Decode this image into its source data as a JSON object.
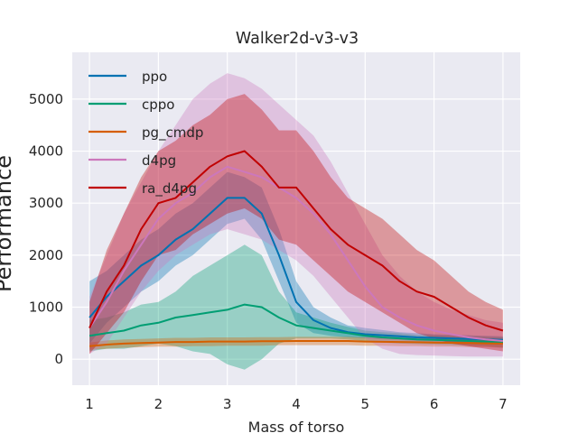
{
  "chart_data": {
    "type": "line",
    "title": "Walker2d-v3-v3",
    "xlabel": "Mass of torso",
    "ylabel": "Performance",
    "xlim": [
      0.75,
      7.25
    ],
    "ylim": [
      -500,
      5900
    ],
    "xticks": [
      1,
      2,
      3,
      4,
      5,
      6,
      7
    ],
    "yticks": [
      0,
      1000,
      2000,
      3000,
      4000,
      5000
    ],
    "grid": true,
    "legend_placement": "top-left",
    "x": [
      1.0,
      1.25,
      1.5,
      1.75,
      2.0,
      2.25,
      2.5,
      2.75,
      3.0,
      3.25,
      3.5,
      3.75,
      4.0,
      4.25,
      4.5,
      4.75,
      5.0,
      5.25,
      5.5,
      5.75,
      6.0,
      6.25,
      6.5,
      6.75,
      7.0
    ],
    "series": [
      {
        "name": "ppo",
        "color": "#0072b2",
        "values": [
          800,
          1200,
          1500,
          1800,
          2000,
          2300,
          2500,
          2800,
          3100,
          3100,
          2800,
          2000,
          1100,
          750,
          600,
          520,
          480,
          460,
          440,
          420,
          410,
          400,
          390,
          380,
          370
        ],
        "lower": [
          300,
          700,
          1000,
          1300,
          1500,
          1800,
          2000,
          2300,
          2600,
          2700,
          2300,
          1500,
          700,
          500,
          450,
          420,
          400,
          380,
          370,
          350,
          340,
          330,
          320,
          310,
          300
        ],
        "upper": [
          1500,
          1700,
          2000,
          2300,
          2500,
          2800,
          3000,
          3300,
          3600,
          3500,
          3300,
          2500,
          1500,
          1000,
          800,
          650,
          600,
          560,
          520,
          500,
          480,
          470,
          460,
          450,
          440
        ]
      },
      {
        "name": "cppo",
        "color": "#009e73",
        "values": [
          450,
          500,
          550,
          650,
          700,
          800,
          850,
          900,
          950,
          1050,
          1000,
          800,
          650,
          600,
          550,
          500,
          450,
          420,
          400,
          380,
          370,
          360,
          350,
          340,
          320
        ],
        "lower": [
          150,
          200,
          200,
          250,
          300,
          250,
          150,
          100,
          -100,
          -200,
          0,
          300,
          400,
          400,
          400,
          380,
          350,
          320,
          300,
          290,
          280,
          270,
          260,
          250,
          220
        ],
        "upper": [
          750,
          800,
          900,
          1050,
          1100,
          1300,
          1600,
          1800,
          2000,
          2200,
          2000,
          1300,
          900,
          800,
          700,
          620,
          550,
          520,
          500,
          470,
          460,
          450,
          440,
          430,
          420
        ]
      },
      {
        "name": "pg_cmdp",
        "color": "#d55e00",
        "values": [
          250,
          280,
          300,
          310,
          320,
          330,
          330,
          340,
          340,
          340,
          345,
          345,
          350,
          350,
          350,
          350,
          340,
          335,
          330,
          325,
          320,
          315,
          310,
          305,
          300
        ],
        "lower": [
          180,
          200,
          220,
          230,
          240,
          240,
          250,
          250,
          260,
          260,
          260,
          270,
          270,
          270,
          270,
          270,
          260,
          260,
          250,
          250,
          240,
          240,
          230,
          230,
          220
        ],
        "upper": [
          320,
          360,
          380,
          390,
          400,
          410,
          410,
          420,
          420,
          420,
          425,
          425,
          430,
          430,
          430,
          430,
          420,
          410,
          410,
          400,
          400,
          390,
          390,
          380,
          380
        ]
      },
      {
        "name": "d4pg",
        "color": "#cc78bc",
        "values": [
          600,
          1100,
          1700,
          2200,
          2700,
          3000,
          3200,
          3500,
          3700,
          3600,
          3500,
          3300,
          3100,
          2800,
          2400,
          1900,
          1400,
          1000,
          800,
          650,
          550,
          480,
          420,
          380,
          350
        ],
        "lower": [
          100,
          300,
          800,
          1300,
          1700,
          2000,
          2200,
          2400,
          2500,
          2400,
          2300,
          2100,
          1900,
          1600,
          1200,
          800,
          400,
          200,
          100,
          80,
          70,
          60,
          50,
          50,
          50
        ],
        "upper": [
          1200,
          2000,
          2800,
          3400,
          4000,
          4500,
          5000,
          5300,
          5500,
          5400,
          5200,
          4900,
          4600,
          4300,
          3800,
          3200,
          2600,
          2000,
          1600,
          1300,
          1100,
          950,
          850,
          750,
          700
        ]
      },
      {
        "name": "ra_d4pg",
        "color": "#c00000",
        "values": [
          600,
          1300,
          1800,
          2500,
          3000,
          3100,
          3400,
          3700,
          3900,
          4000,
          3700,
          3300,
          3300,
          2900,
          2500,
          2200,
          2000,
          1800,
          1500,
          1300,
          1200,
          1000,
          800,
          650,
          550
        ],
        "lower": [
          100,
          500,
          900,
          1500,
          2000,
          2100,
          2400,
          2600,
          2800,
          2900,
          2700,
          2300,
          2200,
          1900,
          1600,
          1300,
          1100,
          900,
          700,
          500,
          400,
          300,
          250,
          200,
          150
        ],
        "upper": [
          1100,
          2100,
          2800,
          3500,
          4000,
          4200,
          4500,
          4700,
          5000,
          5100,
          4800,
          4400,
          4400,
          4000,
          3500,
          3100,
          2900,
          2700,
          2400,
          2100,
          1900,
          1600,
          1300,
          1100,
          950
        ]
      }
    ]
  }
}
